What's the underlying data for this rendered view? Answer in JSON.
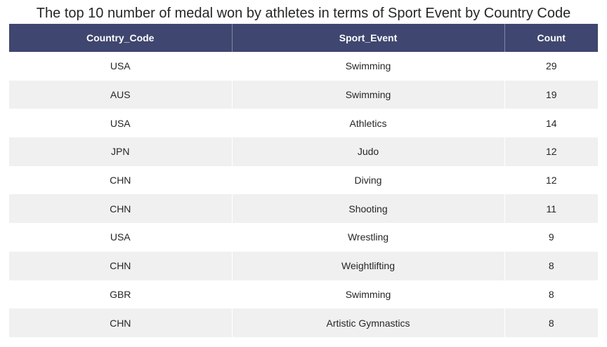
{
  "chart_data": {
    "type": "table",
    "title": "The top 10 number of medal won by athletes in terms of Sport Event by Country Code",
    "columns": [
      "Country_Code",
      "Sport_Event",
      "Count"
    ],
    "rows": [
      [
        "USA",
        "Swimming",
        "29"
      ],
      [
        "AUS",
        "Swimming",
        "19"
      ],
      [
        "USA",
        "Athletics",
        "14"
      ],
      [
        "JPN",
        "Judo",
        "12"
      ],
      [
        "CHN",
        "Diving",
        "12"
      ],
      [
        "CHN",
        "Shooting",
        "11"
      ],
      [
        "USA",
        "Wrestling",
        "9"
      ],
      [
        "CHN",
        "Weightlifting",
        "8"
      ],
      [
        "GBR",
        "Swimming",
        "8"
      ],
      [
        "CHN",
        "Artistic Gymnastics",
        "8"
      ]
    ],
    "colors": {
      "header_bg": "#3f466f",
      "header_text": "#ffffff",
      "row_alt_bg": "#f0f0f0",
      "row_bg": "#ffffff",
      "text": "#262626"
    }
  }
}
